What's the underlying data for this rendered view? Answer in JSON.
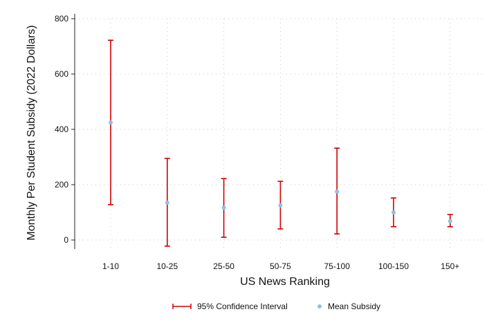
{
  "chart_data": {
    "type": "scatter",
    "title": "",
    "xlabel": "US News Ranking",
    "ylabel": "Monthly Per Student Subsidy (2022 Dollars)",
    "ylim": [
      -40,
      800
    ],
    "yticks": [
      0,
      200,
      400,
      600,
      800
    ],
    "grid": true,
    "legend_position": "bottom",
    "categories": [
      "1-10",
      "10-25",
      "25-50",
      "50-75",
      "75-100",
      "100-150",
      "150+"
    ],
    "series": [
      {
        "name": "Mean Subsidy",
        "kind": "point",
        "color": "#8ec0e8",
        "values": [
          425,
          135,
          117,
          125,
          175,
          100,
          68
        ]
      },
      {
        "name": "95% Confidence Interval",
        "kind": "errorbar",
        "color": "#cc0000",
        "lower": [
          128,
          -22,
          10,
          40,
          22,
          48,
          48
        ],
        "upper": [
          722,
          295,
          222,
          212,
          332,
          152,
          92
        ]
      }
    ]
  }
}
